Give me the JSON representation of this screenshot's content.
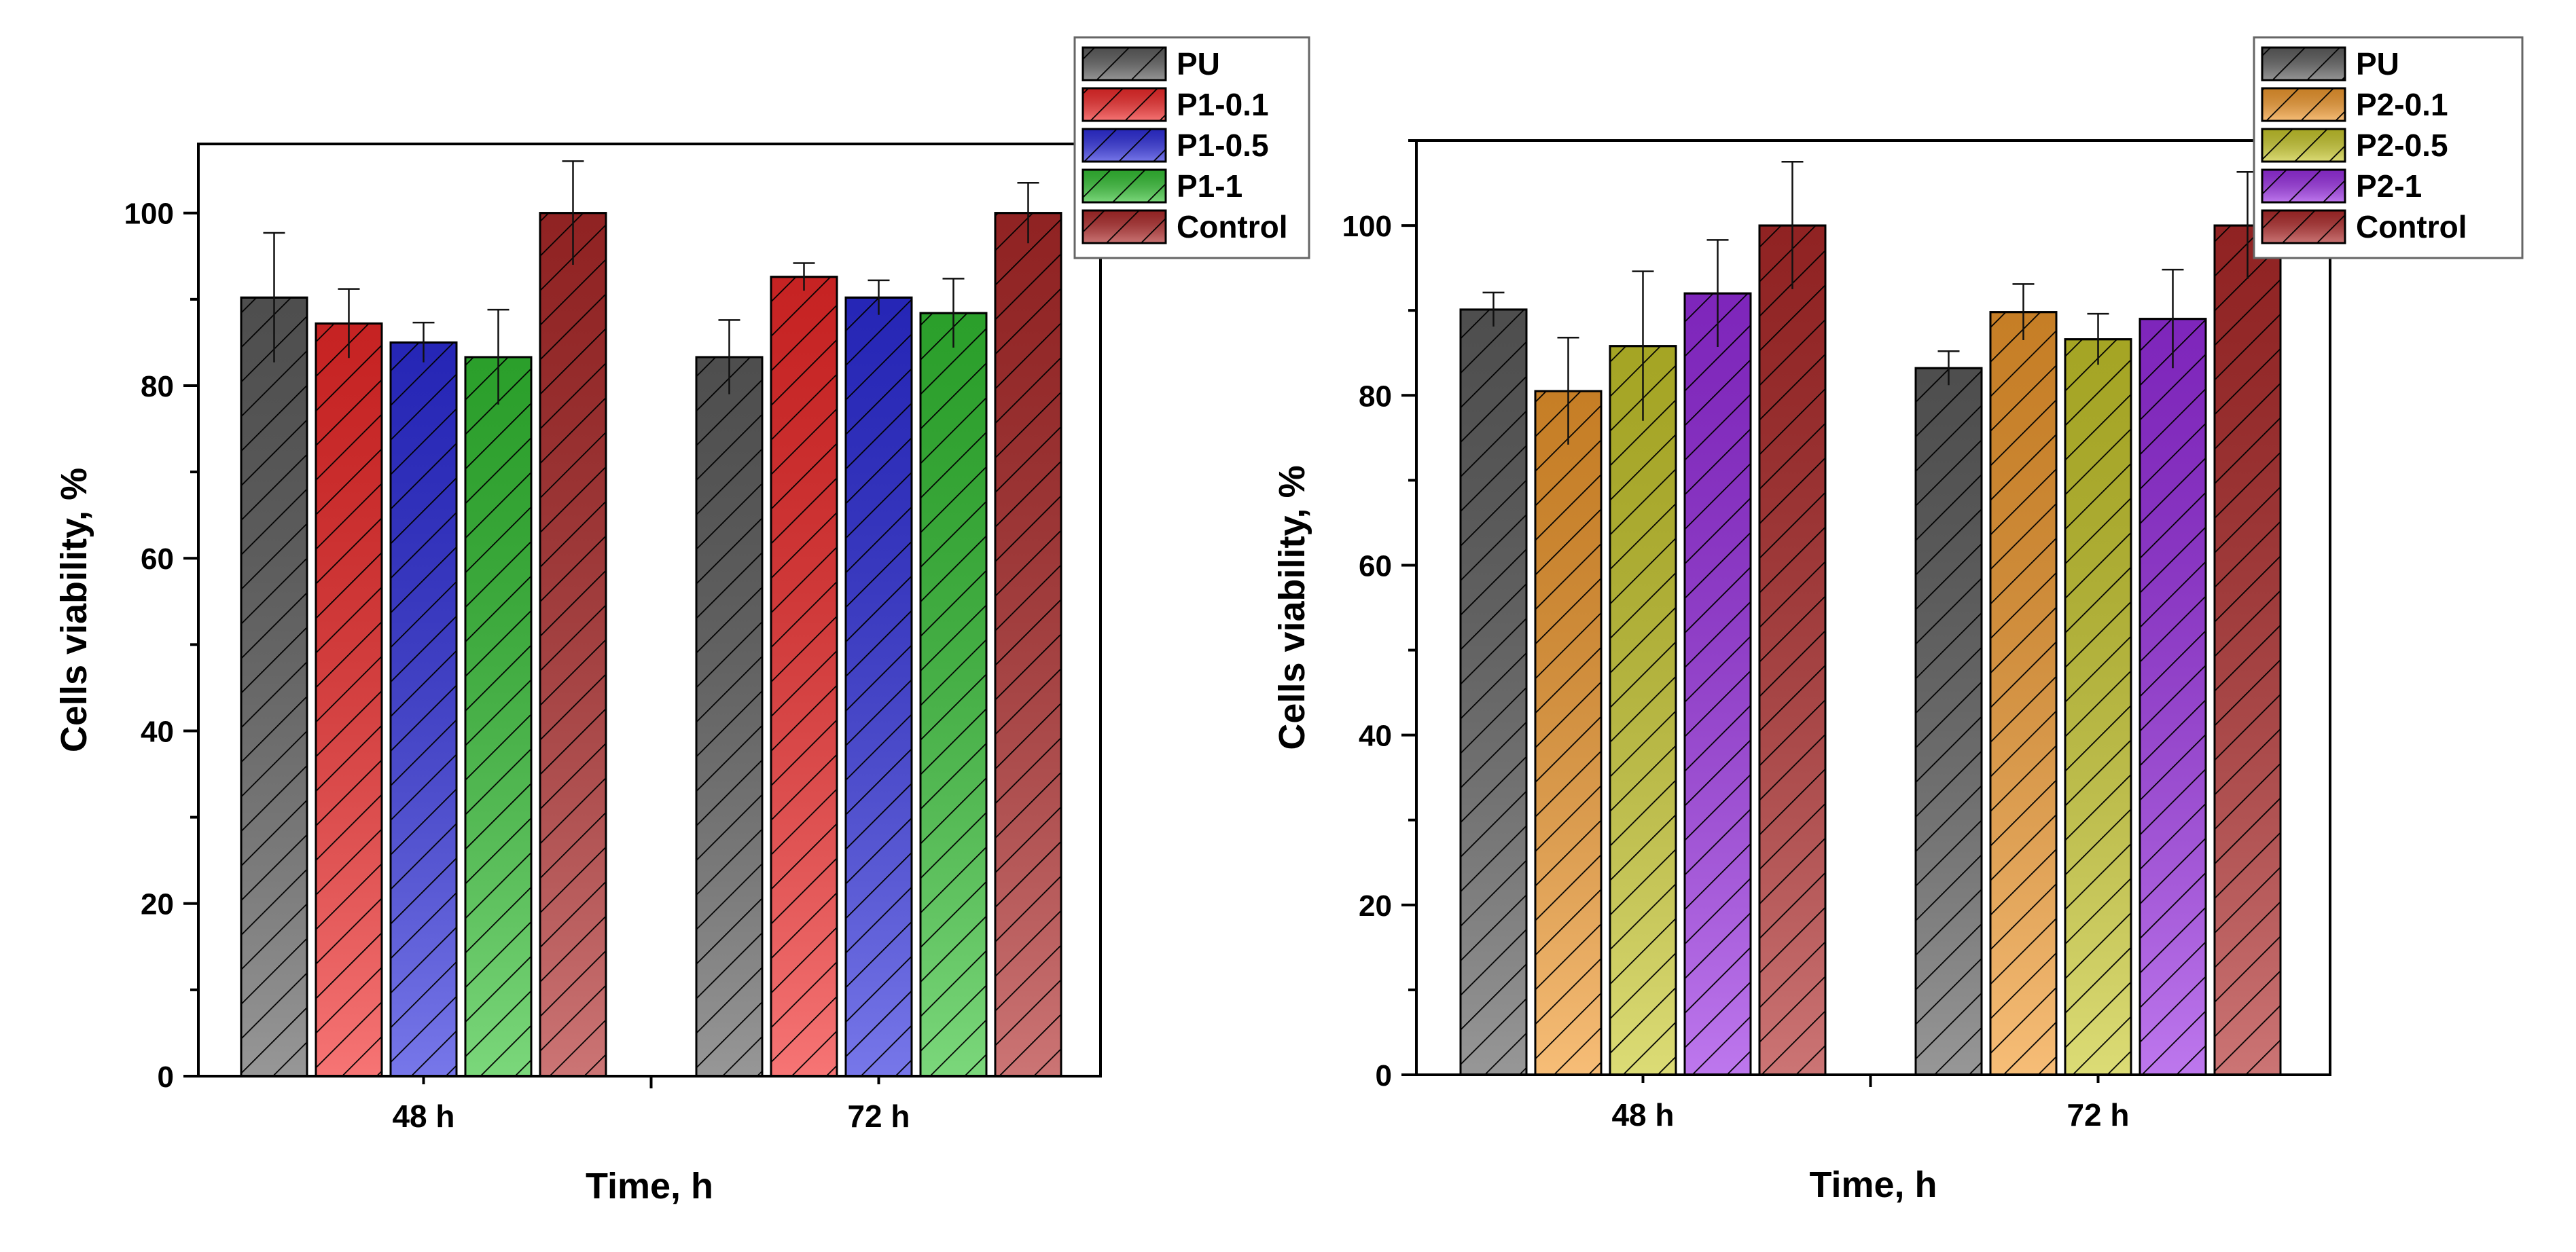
{
  "chart_data": [
    {
      "type": "bar",
      "title": "",
      "xlabel": "Time, h",
      "ylabel": "Cells viability, %",
      "ylim": [
        0,
        108
      ],
      "yticks": [
        0,
        20,
        40,
        60,
        80,
        100
      ],
      "categories": [
        "48 h",
        "72 h"
      ],
      "legend_position": "top-right",
      "grid": false,
      "series": [
        {
          "name": "PU",
          "color": "#5f5f5f",
          "values": [
            90.2,
            83.3
          ],
          "errors": [
            7.5,
            4.3
          ]
        },
        {
          "name": "P1-0.1",
          "color": "#f22a2a",
          "values": [
            87.2,
            92.6
          ],
          "errors": [
            4.0,
            1.6
          ]
        },
        {
          "name": "P1-0.5",
          "color": "#2e2ede",
          "values": [
            85.0,
            90.2
          ],
          "errors": [
            2.3,
            2.0
          ]
        },
        {
          "name": "P1-1",
          "color": "#34c234",
          "values": [
            83.3,
            88.4
          ],
          "errors": [
            5.5,
            4.0
          ]
        },
        {
          "name": "Control",
          "color": "#b02a2a",
          "values": [
            100.0,
            100.0
          ],
          "errors": [
            6.0,
            3.5
          ]
        }
      ]
    },
    {
      "type": "bar",
      "title": "",
      "xlabel": "Time, h",
      "ylabel": "Cells viability, %",
      "ylim": [
        0,
        110
      ],
      "yticks": [
        0,
        20,
        40,
        60,
        80,
        100
      ],
      "categories": [
        "48 h",
        "72 h"
      ],
      "legend_position": "top-right",
      "grid": false,
      "series": [
        {
          "name": "PU",
          "color": "#5f5f5f",
          "values": [
            90.1,
            83.2
          ],
          "errors": [
            2.0,
            2.0
          ]
        },
        {
          "name": "P2-0.1",
          "color": "#f29a2e",
          "values": [
            80.5,
            89.8
          ],
          "errors": [
            6.3,
            3.3
          ]
        },
        {
          "name": "P2-0.5",
          "color": "#c9c92c",
          "values": [
            85.8,
            86.6
          ],
          "errors": [
            8.8,
            3.0
          ]
        },
        {
          "name": "P2-1",
          "color": "#9a2ee4",
          "values": [
            92.0,
            89.0
          ],
          "errors": [
            6.3,
            5.8
          ]
        },
        {
          "name": "Control",
          "color": "#b02a2a",
          "values": [
            100.0,
            100.0
          ],
          "errors": [
            7.5,
            6.3
          ]
        }
      ]
    }
  ]
}
